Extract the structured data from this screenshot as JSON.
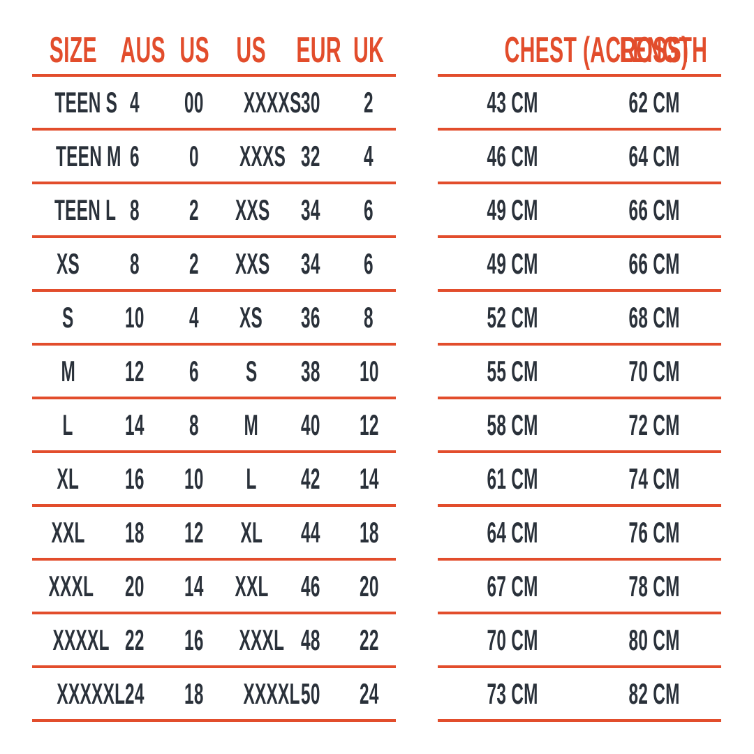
{
  "colors": {
    "accent": "#E24D2C",
    "text": "#2A313A",
    "background": "#FFFFFF"
  },
  "chart_data": {
    "type": "table",
    "tables": [
      {
        "name": "size-conversion",
        "headers": [
          "SIZE",
          "AUS",
          "US",
          "US",
          "EUR",
          "UK"
        ],
        "rows": [
          [
            "TEEN S",
            "4",
            "00",
            "XXXXS",
            "30",
            "2"
          ],
          [
            "TEEN M",
            "6",
            "0",
            "XXXS",
            "32",
            "4"
          ],
          [
            "TEEN L",
            "8",
            "2",
            "XXS",
            "34",
            "6"
          ],
          [
            "XS",
            "8",
            "2",
            "XXS",
            "34",
            "6"
          ],
          [
            "S",
            "10",
            "4",
            "XS",
            "36",
            "8"
          ],
          [
            "M",
            "12",
            "6",
            "S",
            "38",
            "10"
          ],
          [
            "L",
            "14",
            "8",
            "M",
            "40",
            "12"
          ],
          [
            "XL",
            "16",
            "10",
            "L",
            "42",
            "14"
          ],
          [
            "XXL",
            "18",
            "12",
            "XL",
            "44",
            "18"
          ],
          [
            "XXXL",
            "20",
            "14",
            "XXL",
            "46",
            "20"
          ],
          [
            "XXXXL",
            "22",
            "16",
            "XXXL",
            "48",
            "22"
          ],
          [
            "XXXXXL",
            "24",
            "18",
            "XXXXL",
            "50",
            "24"
          ]
        ]
      },
      {
        "name": "garment-measurements",
        "headers": [
          "CHEST (ACROSS)",
          "LENGTH"
        ],
        "rows": [
          [
            "43 CM",
            "62 CM"
          ],
          [
            "46 CM",
            "64 CM"
          ],
          [
            "49 CM",
            "66 CM"
          ],
          [
            "49 CM",
            "66 CM"
          ],
          [
            "52 CM",
            "68 CM"
          ],
          [
            "55 CM",
            "70 CM"
          ],
          [
            "58 CM",
            "72 CM"
          ],
          [
            "61 CM",
            "74 CM"
          ],
          [
            "64 CM",
            "76 CM"
          ],
          [
            "67 CM",
            "78 CM"
          ],
          [
            "70 CM",
            "80 CM"
          ],
          [
            "73 CM",
            "82 CM"
          ]
        ]
      }
    ]
  }
}
